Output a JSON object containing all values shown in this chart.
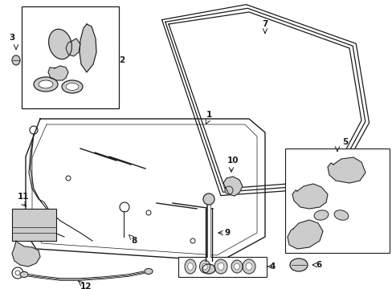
{
  "bg_color": "#ffffff",
  "lc": "#1a1a1a",
  "gray": "#aaaaaa",
  "lgray": "#cccccc",
  "figsize": [
    4.89,
    3.6
  ],
  "dpi": 100,
  "xlim": [
    0,
    489
  ],
  "ylim": [
    0,
    360
  ]
}
